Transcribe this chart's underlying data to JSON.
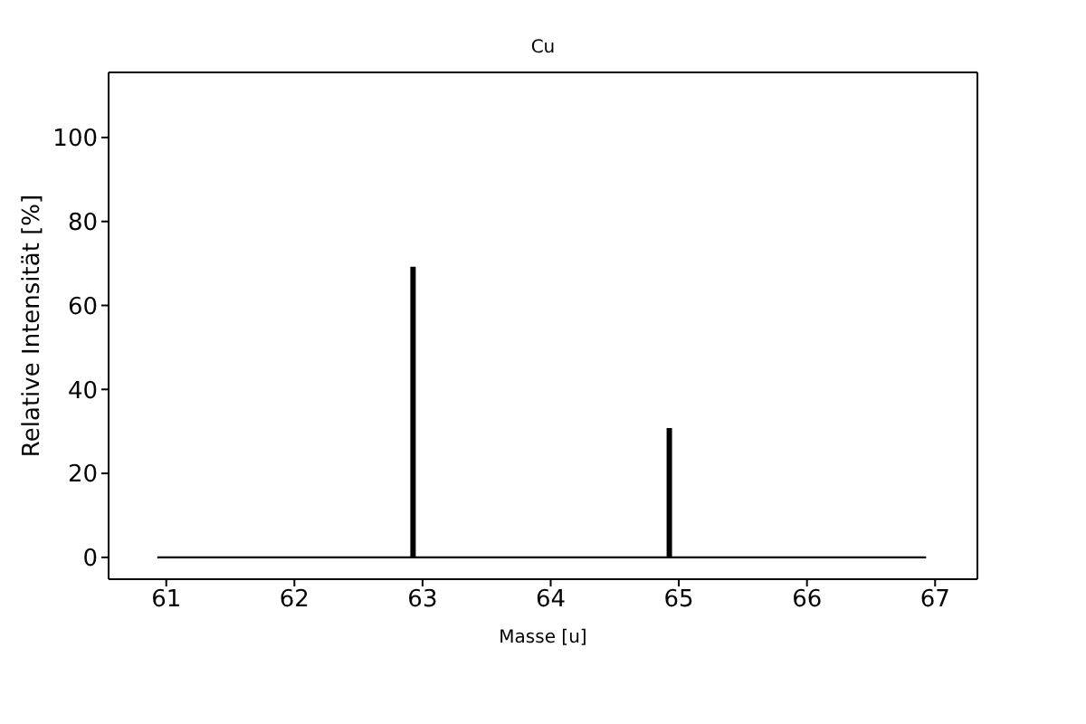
{
  "chart_data": {
    "type": "bar",
    "title": "Cu",
    "xlabel": "Masse [u]",
    "ylabel": "Relative Intensität [%]",
    "series": [
      {
        "x": [
          62.93,
          64.93
        ],
        "values": [
          69.2,
          30.8
        ],
        "color": "#000000"
      },
      {
        "type": "line",
        "x": [
          60.93,
          66.93
        ],
        "values": [
          0,
          0
        ],
        "color": "#000000"
      }
    ],
    "xlim": [
      60.55,
      67.33
    ],
    "ylim": [
      -5.2,
      115.5
    ],
    "xticks": [
      61,
      62,
      63,
      64,
      65,
      66,
      67
    ],
    "yticks": [
      0,
      20,
      40,
      60,
      80,
      100
    ]
  }
}
